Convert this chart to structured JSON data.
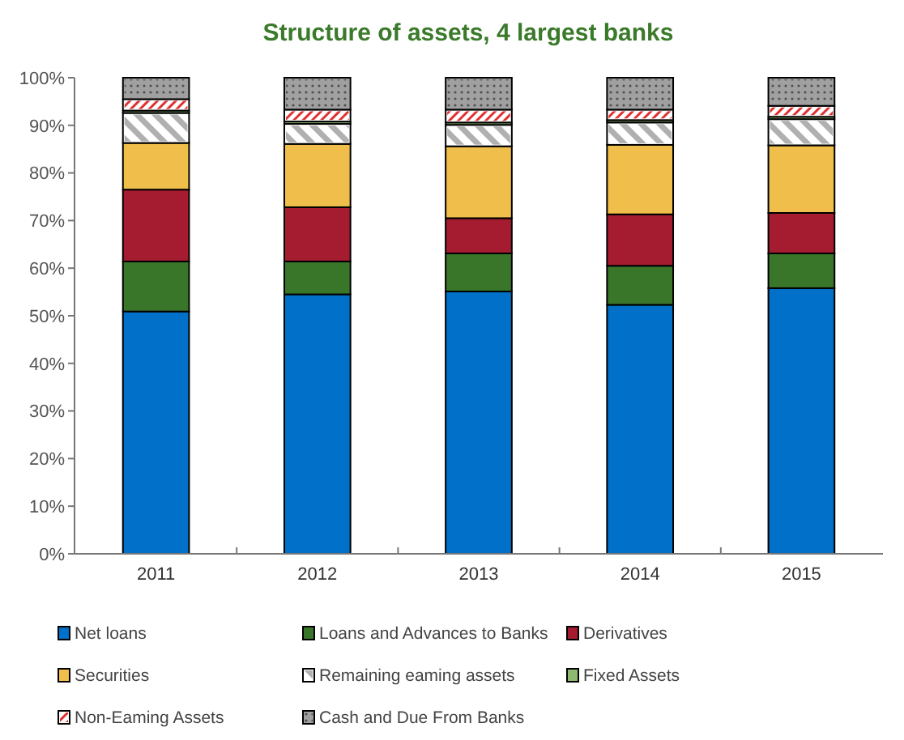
{
  "chart_data": {
    "type": "bar",
    "title": "Structure of assets, 4 largest banks",
    "stacked": true,
    "categories": [
      "2011",
      "2012",
      "2013",
      "2014",
      "2015"
    ],
    "series": [
      {
        "name": "Net loans",
        "color": "#0070c8",
        "values": [
          50.9,
          54.5,
          55.1,
          52.3,
          55.8
        ]
      },
      {
        "name": "Loans and Advances to Banks",
        "color": "#3a762a",
        "values": [
          10.5,
          6.9,
          8.0,
          8.2,
          7.3
        ]
      },
      {
        "name": "Derivatives",
        "color": "#a51c30",
        "values": [
          15.1,
          11.4,
          7.4,
          10.8,
          8.5
        ]
      },
      {
        "name": "Securities",
        "color": "#f0be4a",
        "values": [
          9.8,
          13.3,
          15.1,
          14.6,
          14.2
        ]
      },
      {
        "name": "Remaining eaming assets",
        "color": "#ffffff",
        "values": [
          6.3,
          4.2,
          4.5,
          4.7,
          5.5
        ]
      },
      {
        "name": "Fixed Assets",
        "color": "#8fb870",
        "values": [
          0.5,
          0.5,
          0.5,
          0.5,
          0.5
        ]
      },
      {
        "name": "Non-Eaming Assets",
        "color": "#ffffff",
        "values": [
          2.4,
          2.5,
          2.7,
          2.2,
          2.3
        ]
      },
      {
        "name": "Cash and Due From Banks",
        "color": "#a0a0a0",
        "values": [
          4.5,
          6.7,
          6.7,
          6.7,
          5.9
        ]
      }
    ],
    "ylim": [
      0,
      100
    ],
    "yticks": [
      {
        "value": 0,
        "label": "0%"
      },
      {
        "value": 10,
        "label": "10%"
      },
      {
        "value": 20,
        "label": "20%"
      },
      {
        "value": 30,
        "label": "30%"
      },
      {
        "value": 40,
        "label": "40%"
      },
      {
        "value": 50,
        "label": "50%"
      },
      {
        "value": 60,
        "label": "60%"
      },
      {
        "value": 70,
        "label": "70%"
      },
      {
        "value": 80,
        "label": "80%"
      },
      {
        "value": 90,
        "label": "90%"
      },
      {
        "value": 100,
        "label": "100%"
      }
    ],
    "grid": false,
    "legend": "bottom"
  }
}
